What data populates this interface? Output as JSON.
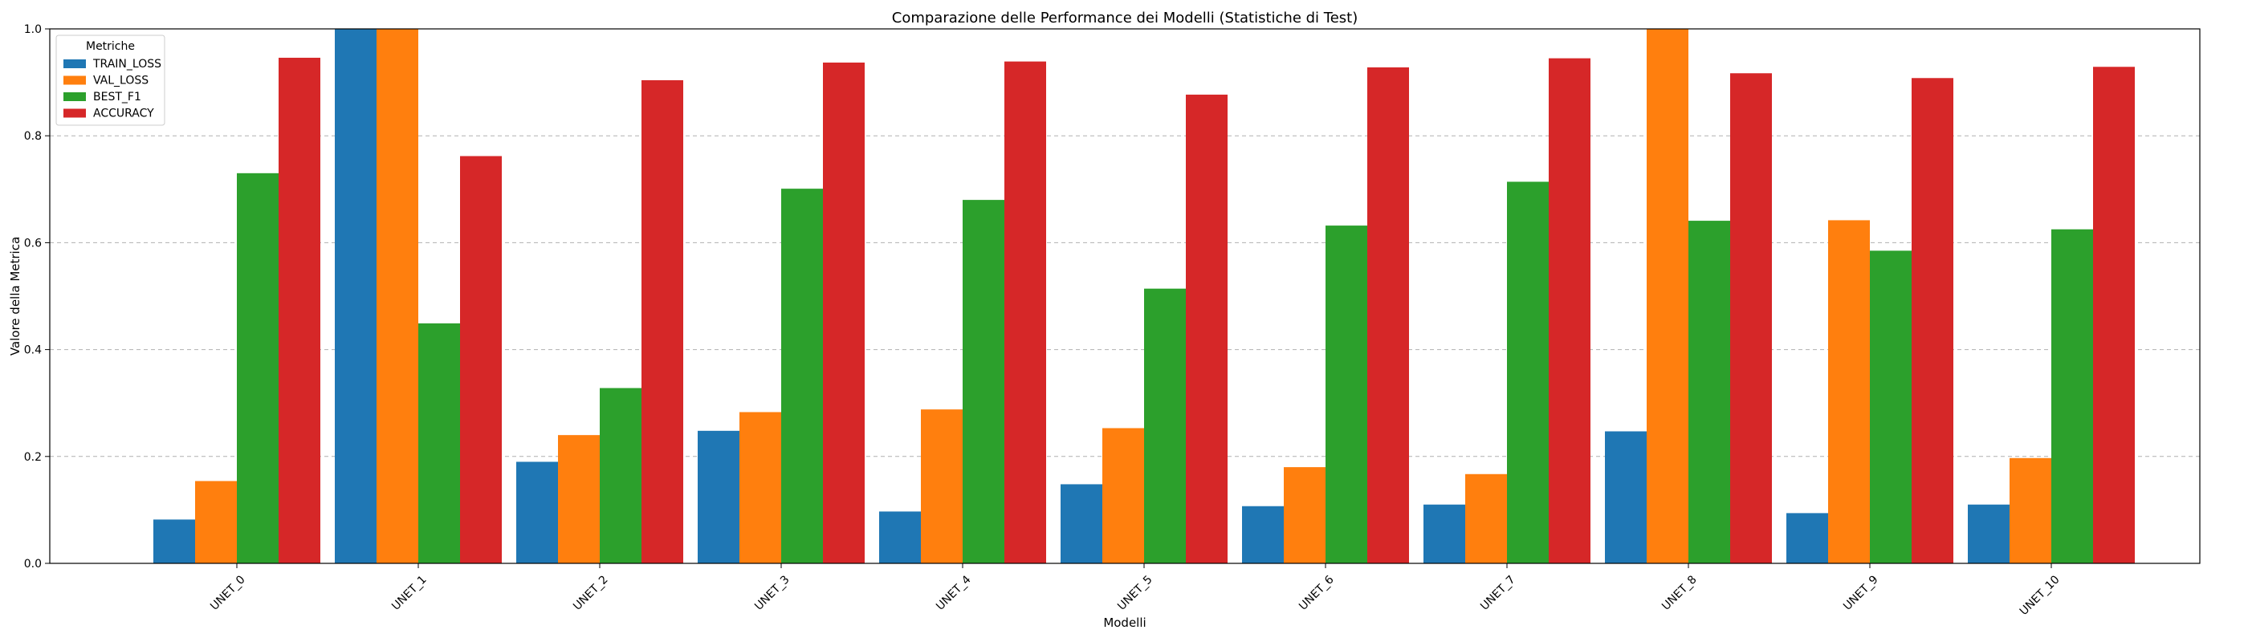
{
  "chart_data": {
    "type": "bar",
    "title": "Comparazione delle Performance dei Modelli (Statistiche di Test)",
    "xlabel": "Modelli",
    "ylabel": "Valore della Metrica",
    "ylim": [
      0,
      1.0
    ],
    "yticks": [
      "0.0",
      "0.2",
      "0.4",
      "0.6",
      "0.8",
      "1.0"
    ],
    "grid": true,
    "legend": {
      "title": "Metriche",
      "placement": "top-left"
    },
    "categories": [
      "UNET_0",
      "UNET_1",
      "UNET_2",
      "UNET_3",
      "UNET_4",
      "UNET_5",
      "UNET_6",
      "UNET_7",
      "UNET_8",
      "UNET_9",
      "UNET_10"
    ],
    "series": [
      {
        "name": "TRAIN_LOSS",
        "color": "#1f77b4",
        "values": [
          0.082,
          1.0,
          0.19,
          0.248,
          0.097,
          0.148,
          0.107,
          0.11,
          0.247,
          0.094,
          0.11
        ]
      },
      {
        "name": "VAL_LOSS",
        "color": "#ff7f0e",
        "values": [
          0.154,
          1.0,
          0.24,
          0.283,
          0.288,
          0.253,
          0.18,
          0.167,
          1.0,
          0.642,
          0.197
        ]
      },
      {
        "name": "BEST_F1",
        "color": "#2ca02c",
        "values": [
          0.73,
          0.449,
          0.328,
          0.701,
          0.68,
          0.514,
          0.632,
          0.714,
          0.641,
          0.585,
          0.625
        ]
      },
      {
        "name": "ACCURACY",
        "color": "#d62728",
        "values": [
          0.946,
          0.762,
          0.904,
          0.937,
          0.939,
          0.877,
          0.928,
          0.945,
          0.917,
          0.908,
          0.929
        ]
      }
    ]
  }
}
